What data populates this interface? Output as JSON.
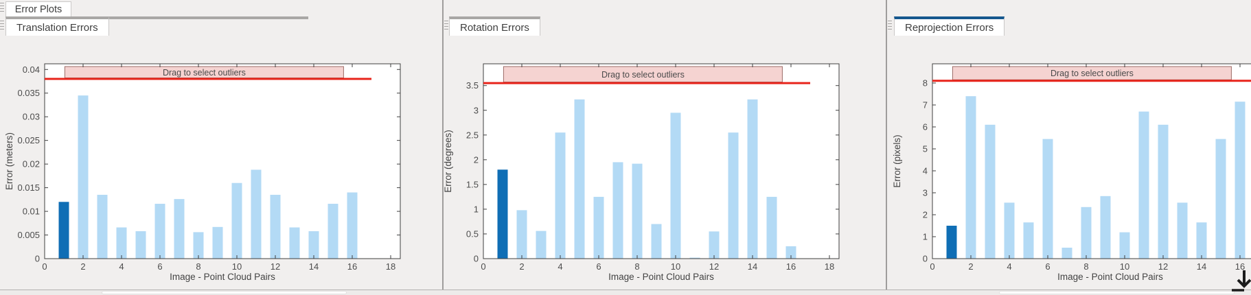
{
  "window": {
    "figure_tab": "Error Plots"
  },
  "colors": {
    "bar": "#b3daf5",
    "bar_selected": "#0f6eb5",
    "threshold": "#e8241b",
    "band_fill": "#f5d3d1",
    "band_border": "#9b6b66",
    "band_text": "#4a4a4a",
    "axis": "#3f3f3f",
    "tick_text": "#4c4c4c",
    "label_text": "#434343",
    "active_tab_accent": "#16588e"
  },
  "panels": [
    {
      "tab_label": "Translation Errors",
      "active": false,
      "chart": {
        "type": "bar",
        "xlabel": "Image - Point Cloud Pairs",
        "ylabel": "Error (meters)",
        "band_label": "Drag to select outliers",
        "categories": [
          1,
          2,
          3,
          4,
          5,
          6,
          7,
          8,
          9,
          10,
          11,
          12,
          13,
          14,
          15,
          16
        ],
        "values": [
          0.012,
          0.0345,
          0.0135,
          0.0066,
          0.0058,
          0.0116,
          0.0126,
          0.0056,
          0.0067,
          0.016,
          0.0188,
          0.0135,
          0.0066,
          0.0058,
          0.0116,
          0.014
        ],
        "highlight_index": 0,
        "threshold": 0.038,
        "xlim": [
          0,
          18.5
        ],
        "ylim": [
          0,
          0.0412
        ],
        "xticks": [
          0,
          2,
          4,
          6,
          8,
          10,
          12,
          14,
          16,
          18
        ],
        "ytick_values": [
          0,
          0.005,
          0.01,
          0.015,
          0.02,
          0.025,
          0.03,
          0.035,
          0.04
        ],
        "ytick_labels": [
          "0",
          "0.005",
          "0.01",
          "0.015",
          "0.02",
          "0.025",
          "0.03",
          "0.035",
          "0.04"
        ]
      }
    },
    {
      "tab_label": "Rotation Errors",
      "active": false,
      "chart": {
        "type": "bar",
        "xlabel": "Image - Point Cloud Pairs",
        "ylabel": "Error (degrees)",
        "band_label": "Drag to select outliers",
        "categories": [
          1,
          2,
          3,
          4,
          5,
          6,
          7,
          8,
          9,
          10,
          11,
          12,
          13,
          14,
          15,
          16
        ],
        "values": [
          1.8,
          0.98,
          0.56,
          2.55,
          3.22,
          1.25,
          1.95,
          1.92,
          0.7,
          2.95,
          0.02,
          0.55,
          2.55,
          3.22,
          1.25,
          0.25
        ],
        "highlight_index": 0,
        "threshold": 3.55,
        "xlim": [
          0,
          18.5
        ],
        "ylim": [
          0,
          3.94
        ],
        "xticks": [
          0,
          2,
          4,
          6,
          8,
          10,
          12,
          14,
          16,
          18
        ],
        "ytick_values": [
          0,
          0.5,
          1,
          1.5,
          2,
          2.5,
          3,
          3.5
        ],
        "ytick_labels": [
          "0",
          "0.5",
          "1",
          "1.5",
          "2",
          "2.5",
          "3",
          "3.5"
        ]
      }
    },
    {
      "tab_label": "Reprojection Errors",
      "active": true,
      "chart": {
        "type": "bar",
        "xlabel": "Image - Point Cloud Pairs",
        "ylabel": "Error (pixels)",
        "band_label": "Drag to select outliers",
        "categories": [
          1,
          2,
          3,
          4,
          5,
          6,
          7,
          8,
          9,
          10,
          11,
          12,
          13,
          14,
          15,
          16
        ],
        "values": [
          1.5,
          7.4,
          6.1,
          2.55,
          1.65,
          5.45,
          0.5,
          2.35,
          2.85,
          1.2,
          6.7,
          6.1,
          2.55,
          1.65,
          5.45,
          7.15
        ],
        "highlight_index": 0,
        "threshold": 8.1,
        "xlim": [
          0,
          18.5
        ],
        "ylim": [
          0,
          8.875
        ],
        "xticks": [
          0,
          2,
          4,
          6,
          8,
          10,
          12,
          14,
          16
        ],
        "ytick_values": [
          0,
          1,
          2,
          3,
          4,
          5,
          6,
          7,
          8
        ],
        "ytick_labels": [
          "0",
          "1",
          "2",
          "3",
          "4",
          "5",
          "6",
          "7",
          "8"
        ]
      }
    }
  ]
}
